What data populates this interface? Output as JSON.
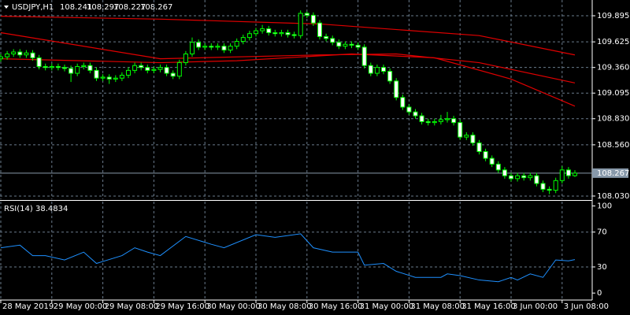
{
  "chart_data": {
    "type": "candlestick",
    "title": "USDJPY,H1",
    "open": [
      109.45,
      109.47,
      109.5,
      109.52,
      109.49,
      109.51,
      109.46,
      109.37,
      109.36,
      109.37,
      109.36,
      109.35,
      109.3,
      109.37,
      109.38,
      109.33,
      109.25,
      109.26,
      109.24,
      109.25,
      109.28,
      109.33,
      109.38,
      109.36,
      109.33,
      109.34,
      109.36,
      109.3,
      109.27,
      109.41,
      109.5,
      109.62,
      109.57,
      109.58,
      109.57,
      109.58,
      109.54,
      109.58,
      109.63,
      109.67,
      109.71,
      109.74,
      109.76,
      109.72,
      109.71,
      109.72,
      109.7,
      109.69,
      109.92,
      109.9,
      109.82,
      109.68,
      109.66,
      109.62,
      109.58,
      109.6,
      109.59,
      109.57,
      109.38,
      109.3,
      109.36,
      109.32,
      109.22,
      109.05,
      108.95,
      108.9,
      108.86,
      108.8,
      108.79,
      108.8,
      108.82,
      108.83,
      108.79,
      108.64,
      108.66,
      108.58,
      108.49,
      108.42,
      108.36,
      108.3,
      108.24,
      108.21,
      108.24,
      108.22,
      108.24,
      108.16,
      108.1,
      108.09,
      108.19,
      108.3,
      108.241
    ],
    "high": [
      109.5,
      109.53,
      109.55,
      109.55,
      109.54,
      109.54,
      109.49,
      109.4,
      109.4,
      109.4,
      109.39,
      109.38,
      109.4,
      109.41,
      109.41,
      109.36,
      109.29,
      109.29,
      109.28,
      109.31,
      109.36,
      109.41,
      109.41,
      109.39,
      109.37,
      109.39,
      109.39,
      109.33,
      109.44,
      109.53,
      109.67,
      109.65,
      109.61,
      109.61,
      109.61,
      109.61,
      109.61,
      109.66,
      109.7,
      109.74,
      109.77,
      109.8,
      109.79,
      109.75,
      109.75,
      109.75,
      109.73,
      109.95,
      109.94,
      109.93,
      109.85,
      109.71,
      109.69,
      109.65,
      109.63,
      109.63,
      109.62,
      109.6,
      109.41,
      109.39,
      109.39,
      109.35,
      109.25,
      109.08,
      108.98,
      108.93,
      108.89,
      108.83,
      108.83,
      108.87,
      108.9,
      108.86,
      108.82,
      108.69,
      108.69,
      108.61,
      108.52,
      108.45,
      108.39,
      108.33,
      108.27,
      108.27,
      108.27,
      108.27,
      108.27,
      108.19,
      108.13,
      108.22,
      108.34,
      108.33,
      108.297
    ],
    "low": [
      109.42,
      109.44,
      109.47,
      109.46,
      109.46,
      109.43,
      109.34,
      109.33,
      109.33,
      109.33,
      109.32,
      109.21,
      109.27,
      109.34,
      109.3,
      109.22,
      109.22,
      109.19,
      109.21,
      109.22,
      109.25,
      109.3,
      109.33,
      109.3,
      109.3,
      109.31,
      109.27,
      109.24,
      109.24,
      109.38,
      109.47,
      109.54,
      109.54,
      109.54,
      109.54,
      109.51,
      109.51,
      109.55,
      109.6,
      109.64,
      109.68,
      109.71,
      109.69,
      109.68,
      109.68,
      109.67,
      109.66,
      109.66,
      109.87,
      109.79,
      109.65,
      109.63,
      109.59,
      109.55,
      109.55,
      109.56,
      109.54,
      109.35,
      109.27,
      109.27,
      109.29,
      109.19,
      109.02,
      108.92,
      108.87,
      108.83,
      108.77,
      108.76,
      108.76,
      108.77,
      108.79,
      108.76,
      108.61,
      108.61,
      108.55,
      108.46,
      108.39,
      108.33,
      108.27,
      108.21,
      108.18,
      108.18,
      108.19,
      108.19,
      108.13,
      108.07,
      108.05,
      108.06,
      108.16,
      108.21,
      108.227
    ],
    "close": [
      109.47,
      109.5,
      109.52,
      109.49,
      109.51,
      109.46,
      109.37,
      109.36,
      109.37,
      109.36,
      109.35,
      109.3,
      109.37,
      109.38,
      109.33,
      109.25,
      109.26,
      109.24,
      109.25,
      109.28,
      109.33,
      109.38,
      109.36,
      109.33,
      109.34,
      109.36,
      109.3,
      109.27,
      109.41,
      109.5,
      109.62,
      109.57,
      109.58,
      109.57,
      109.58,
      109.54,
      109.58,
      109.63,
      109.67,
      109.71,
      109.74,
      109.76,
      109.72,
      109.71,
      109.72,
      109.7,
      109.69,
      109.92,
      109.9,
      109.82,
      109.68,
      109.66,
      109.62,
      109.58,
      109.6,
      109.59,
      109.57,
      109.38,
      109.3,
      109.36,
      109.32,
      109.22,
      109.05,
      108.95,
      108.9,
      108.86,
      108.8,
      108.79,
      108.8,
      108.82,
      108.83,
      108.79,
      108.64,
      108.66,
      108.58,
      108.49,
      108.42,
      108.36,
      108.3,
      108.24,
      108.21,
      108.24,
      108.22,
      108.24,
      108.16,
      108.1,
      108.09,
      108.19,
      108.3,
      108.241,
      108.267
    ],
    "bull_color": "#000000",
    "bear_color": "#ffffff",
    "wick_color": "#00ff00",
    "ma": [
      {
        "color": "#e00000",
        "x": [
          0,
          25,
          50,
          75,
          90
        ],
        "values": [
          109.89,
          109.86,
          109.81,
          109.69,
          109.49
        ]
      },
      {
        "color": "#e00000",
        "x": [
          0,
          25,
          50,
          62,
          75,
          90
        ],
        "values": [
          109.72,
          109.45,
          109.49,
          109.5,
          109.41,
          109.2
        ]
      },
      {
        "color": "#e00000",
        "x": [
          0,
          25,
          37,
          55,
          68,
          80,
          90
        ],
        "values": [
          109.45,
          109.41,
          109.43,
          109.5,
          109.46,
          109.24,
          108.96
        ]
      }
    ],
    "ylim": [
      107.997,
      110.058
    ],
    "yticks": [
      109.895,
      109.625,
      {
        "value": 109.36,
        "label": "109.360"
      },
      109.095,
      {
        "value": 108.83,
        "label": "108.830"
      },
      {
        "value": 108.56,
        "label": "108.560"
      },
      {
        "value": 108.03,
        "label": "108.030"
      }
    ],
    "xticks": [
      {
        "value": 0,
        "label": "28 May 2019"
      },
      {
        "value": 8,
        "label": "29 May 00:00"
      },
      {
        "value": 16,
        "label": "29 May 08:00"
      },
      {
        "value": 24,
        "label": "29 May 16:00"
      },
      {
        "value": 32,
        "label": "30 May 00:00"
      },
      {
        "value": 40,
        "label": "30 May 08:00"
      },
      {
        "value": 48,
        "label": "30 May 16:00"
      },
      {
        "value": 56,
        "label": "31 May 00:00"
      },
      {
        "value": 64,
        "label": "31 May 08:00"
      },
      {
        "value": 72,
        "label": "31 May 16:00"
      },
      {
        "value": 80,
        "label": "3 Jun 00:00"
      },
      {
        "value": 88,
        "label": "3 Jun 08:00"
      }
    ],
    "grid": true,
    "rsi": {
      "title": "RSI(14)",
      "color": "#1e90ff",
      "x": [
        0,
        3,
        5,
        7,
        10,
        13,
        15,
        19,
        21,
        23,
        25,
        29,
        33,
        35,
        40,
        43,
        47,
        49,
        52,
        56,
        57,
        60,
        62,
        65,
        69,
        70,
        72,
        75,
        78,
        80,
        81,
        83,
        85,
        87,
        89,
        90
      ],
      "values": [
        52,
        55,
        43,
        43,
        38,
        47,
        34,
        43,
        52,
        47,
        43,
        65,
        56,
        52,
        67,
        64,
        68,
        52,
        47,
        47,
        32,
        34,
        25,
        18,
        18,
        22,
        20,
        15,
        13,
        18,
        15,
        22,
        18,
        38,
        37,
        38.4834
      ],
      "ylim": [
        -8,
        105
      ],
      "yticks": [
        100,
        70,
        30,
        0
      ]
    }
  }
}
